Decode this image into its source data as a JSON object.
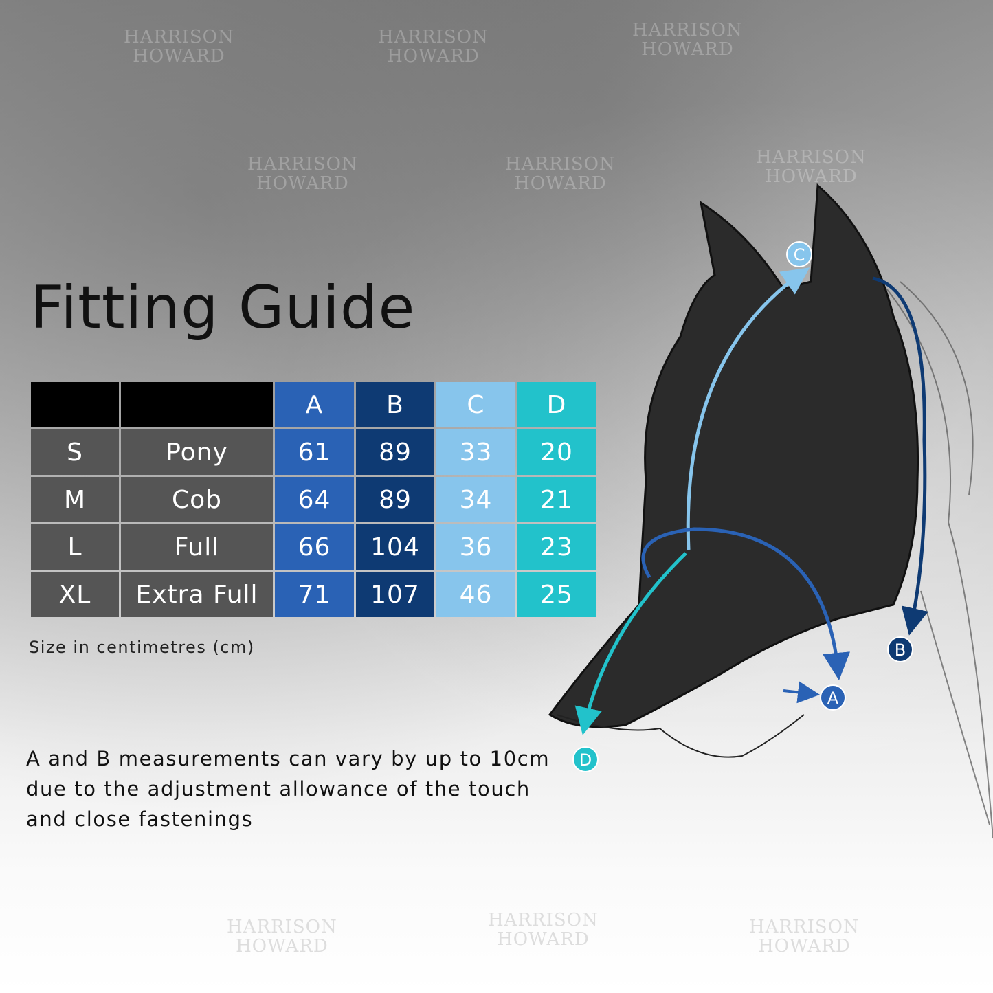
{
  "watermark": "HARRISON HOWARD",
  "title": "Fitting Guide",
  "table": {
    "headers": [
      "",
      "",
      "A",
      "B",
      "C",
      "D"
    ],
    "rows": [
      {
        "size": "S",
        "name": "Pony",
        "a": "61",
        "b": "89",
        "c": "33",
        "d": "20"
      },
      {
        "size": "M",
        "name": "Cob",
        "a": "64",
        "b": "89",
        "c": "34",
        "d": "21"
      },
      {
        "size": "L",
        "name": "Full",
        "a": "66",
        "b": "104",
        "c": "36",
        "d": "23"
      },
      {
        "size": "XL",
        "name": "Extra Full",
        "a": "71",
        "b": "107",
        "c": "46",
        "d": "25"
      }
    ]
  },
  "unit_note": "Size in centimetres (cm)",
  "description": "A and B measurements can vary by up to 10cm due to the adjustment allowance of the touch and close fastenings",
  "diagram": {
    "markers": {
      "a": "A",
      "b": "B",
      "c": "C",
      "d": "D"
    },
    "colors": {
      "a": "#2a62b5",
      "b": "#0e3a73",
      "c": "#87c5ec",
      "d": "#22c2cb"
    }
  }
}
